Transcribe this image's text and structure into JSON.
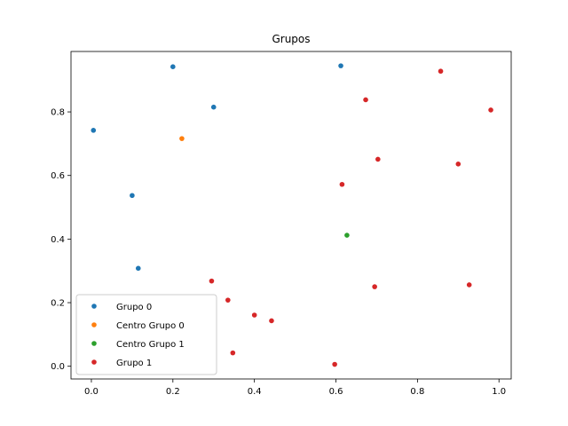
{
  "chart_data": {
    "type": "scatter",
    "title": "Grupos",
    "xlabel": "",
    "ylabel": "",
    "xlim": [
      -0.05,
      1.03
    ],
    "ylim": [
      -0.04,
      0.99
    ],
    "xticks": [
      "0.0",
      "0.2",
      "0.4",
      "0.6",
      "0.8",
      "1.0"
    ],
    "yticks": [
      "0.0",
      "0.2",
      "0.4",
      "0.6",
      "0.8"
    ],
    "grid": false,
    "legend_position": "lower-left",
    "series": [
      {
        "name": "Grupo 0",
        "color": "#1f77b4",
        "points": [
          [
            0.005,
            0.742
          ],
          [
            0.2,
            0.942
          ],
          [
            0.3,
            0.815
          ],
          [
            0.612,
            0.945
          ],
          [
            0.1,
            0.537
          ],
          [
            0.115,
            0.308
          ]
        ]
      },
      {
        "name": "Centro Grupo 0",
        "color": "#ff7f0e",
        "points": [
          [
            0.222,
            0.716
          ]
        ]
      },
      {
        "name": "Centro Grupo 1",
        "color": "#2ca02c",
        "points": [
          [
            0.627,
            0.412
          ]
        ]
      },
      {
        "name": "Grupo 1",
        "color": "#d62728",
        "points": [
          [
            0.857,
            0.928
          ],
          [
            0.98,
            0.806
          ],
          [
            0.673,
            0.838
          ],
          [
            0.703,
            0.651
          ],
          [
            0.9,
            0.636
          ],
          [
            0.615,
            0.572
          ],
          [
            0.695,
            0.25
          ],
          [
            0.927,
            0.256
          ],
          [
            0.295,
            0.268
          ],
          [
            0.335,
            0.208
          ],
          [
            0.4,
            0.161
          ],
          [
            0.442,
            0.143
          ],
          [
            0.347,
            0.042
          ],
          [
            0.597,
            0.006
          ]
        ]
      }
    ]
  }
}
